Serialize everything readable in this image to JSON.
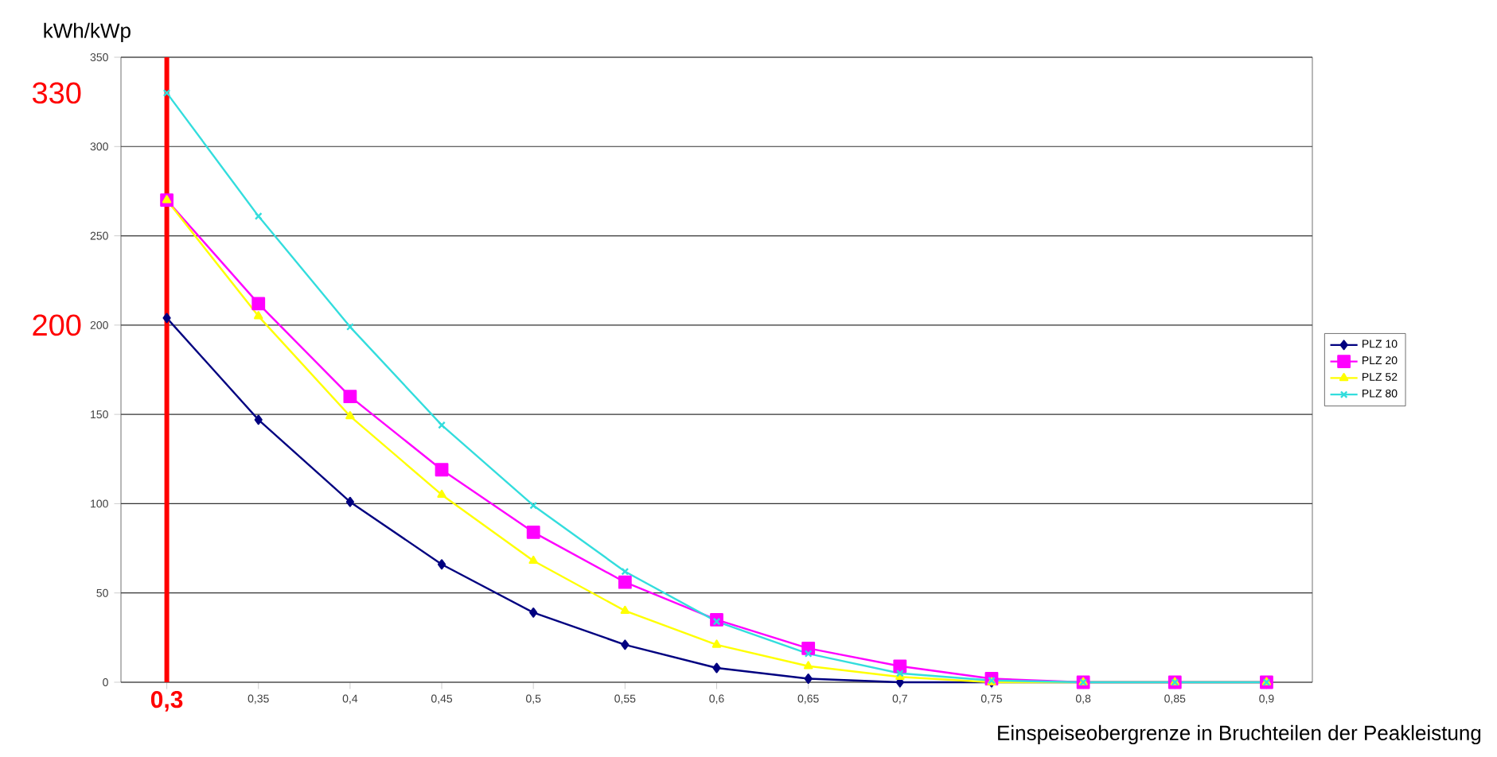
{
  "chart_data": {
    "type": "line",
    "ylabel": "kWh/kWp",
    "xlabel": "Einspeiseobergrenze in Bruchteilen der Peakleistung",
    "x": [
      0.3,
      0.35,
      0.4,
      0.45,
      0.5,
      0.55,
      0.6,
      0.65,
      0.7,
      0.75,
      0.8,
      0.85,
      0.9
    ],
    "series": [
      {
        "name": "PLZ 10",
        "color": "#000080",
        "marker": "diamond",
        "values": [
          204,
          147,
          101,
          66,
          39,
          21,
          8,
          2,
          0,
          0,
          0,
          0,
          0
        ]
      },
      {
        "name": "PLZ 20",
        "color": "#ff00ff",
        "marker": "square",
        "values": [
          270,
          212,
          160,
          119,
          84,
          56,
          35,
          19,
          9,
          2,
          0,
          0,
          0
        ]
      },
      {
        "name": "PLZ 52",
        "color": "#ffff00",
        "marker": "triangle",
        "values": [
          270,
          205,
          149,
          105,
          68,
          40,
          21,
          9,
          3,
          0,
          0,
          0,
          0
        ]
      },
      {
        "name": "PLZ 80",
        "color": "#33dddd",
        "marker": "cross",
        "values": [
          330,
          261,
          199,
          144,
          99,
          62,
          34,
          16,
          5,
          1,
          0,
          0,
          0
        ]
      }
    ],
    "xlim": [
      0.275,
      0.925
    ],
    "xticks": [
      {
        "value": 0.3,
        "label": null
      },
      {
        "value": 0.35,
        "label": "0,35"
      },
      {
        "value": 0.4,
        "label": "0,4"
      },
      {
        "value": 0.45,
        "label": "0,45"
      },
      {
        "value": 0.5,
        "label": "0,5"
      },
      {
        "value": 0.55,
        "label": "0,55"
      },
      {
        "value": 0.6,
        "label": "0,6"
      },
      {
        "value": 0.65,
        "label": "0,65"
      },
      {
        "value": 0.7,
        "label": "0,7"
      },
      {
        "value": 0.75,
        "label": "0,75"
      },
      {
        "value": 0.8,
        "label": "0,8"
      },
      {
        "value": 0.85,
        "label": "0,85"
      },
      {
        "value": 0.9,
        "label": "0,9"
      }
    ],
    "ylim": [
      0,
      350
    ],
    "yticks": [
      0,
      50,
      100,
      150,
      200,
      250,
      300,
      350
    ],
    "grid": "y",
    "legend": "right",
    "line_style": "solid",
    "ref_lines": [
      {
        "axis": "x",
        "value": 0.3,
        "label": "0,3",
        "color": "#ff0000"
      }
    ],
    "annotations": [
      {
        "text": "330",
        "x": 0.3,
        "y": 330
      },
      {
        "text": "200",
        "x": 0.3,
        "y": 200
      }
    ]
  }
}
